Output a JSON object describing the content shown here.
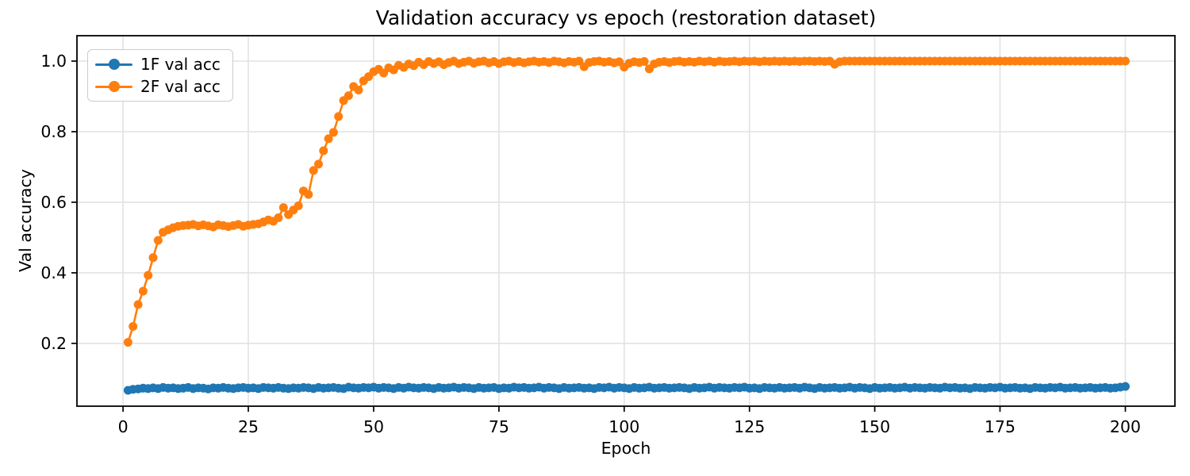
{
  "figure": {
    "title": "Validation accuracy vs epoch (restoration dataset)",
    "xlabel": "Epoch",
    "ylabel": "Val accuracy"
  },
  "legend": {
    "position": "upper left",
    "items": [
      {
        "label": "1F val acc",
        "color": "#1f77b4"
      },
      {
        "label": "2F val acc",
        "color": "#ff7f0e"
      }
    ]
  },
  "chart_data": {
    "type": "line",
    "title": "Validation accuracy vs epoch (restoration dataset)",
    "xlabel": "Epoch",
    "ylabel": "Val accuracy",
    "grid": true,
    "legend_position": "upper left",
    "marker": "circle",
    "xlim": [
      -9.2,
      209.9
    ],
    "ylim": [
      0.022,
      1.072
    ],
    "x_ticks": [
      0,
      25,
      50,
      75,
      100,
      125,
      150,
      175,
      200
    ],
    "x_tick_labels": [
      "0",
      "25",
      "50",
      "75",
      "100",
      "125",
      "150",
      "175",
      "200"
    ],
    "y_ticks": [
      0.2,
      0.4,
      0.6,
      0.8,
      1.0
    ],
    "y_tick_labels": [
      "0.2",
      "0.4",
      "0.6",
      "0.8",
      "1.0"
    ],
    "x": [
      1,
      2,
      3,
      4,
      5,
      6,
      7,
      8,
      9,
      10,
      11,
      12,
      13,
      14,
      15,
      16,
      17,
      18,
      19,
      20,
      21,
      22,
      23,
      24,
      25,
      26,
      27,
      28,
      29,
      30,
      31,
      32,
      33,
      34,
      35,
      36,
      37,
      38,
      39,
      40,
      41,
      42,
      43,
      44,
      45,
      46,
      47,
      48,
      49,
      50,
      51,
      52,
      53,
      54,
      55,
      56,
      57,
      58,
      59,
      60,
      61,
      62,
      63,
      64,
      65,
      66,
      67,
      68,
      69,
      70,
      71,
      72,
      73,
      74,
      75,
      76,
      77,
      78,
      79,
      80,
      81,
      82,
      83,
      84,
      85,
      86,
      87,
      88,
      89,
      90,
      91,
      92,
      93,
      94,
      95,
      96,
      97,
      98,
      99,
      100,
      101,
      102,
      103,
      104,
      105,
      106,
      107,
      108,
      109,
      110,
      111,
      112,
      113,
      114,
      115,
      116,
      117,
      118,
      119,
      120,
      121,
      122,
      123,
      124,
      125,
      126,
      127,
      128,
      129,
      130,
      131,
      132,
      133,
      134,
      135,
      136,
      137,
      138,
      139,
      140,
      141,
      142,
      143,
      144,
      145,
      146,
      147,
      148,
      149,
      150,
      151,
      152,
      153,
      154,
      155,
      156,
      157,
      158,
      159,
      160,
      161,
      162,
      163,
      164,
      165,
      166,
      167,
      168,
      169,
      170,
      171,
      172,
      173,
      174,
      175,
      176,
      177,
      178,
      179,
      180,
      181,
      182,
      183,
      184,
      185,
      186,
      187,
      188,
      189,
      190,
      191,
      192,
      193,
      194,
      195,
      196,
      197,
      198,
      199,
      200
    ],
    "series": [
      {
        "name": "1F val acc",
        "color": "#1f77b4",
        "values": [
          0.067,
          0.07,
          0.071,
          0.073,
          0.072,
          0.074,
          0.072,
          0.075,
          0.073,
          0.074,
          0.072,
          0.073,
          0.075,
          0.072,
          0.074,
          0.073,
          0.071,
          0.074,
          0.073,
          0.075,
          0.073,
          0.072,
          0.074,
          0.075,
          0.073,
          0.074,
          0.072,
          0.075,
          0.074,
          0.073,
          0.075,
          0.073,
          0.072,
          0.074,
          0.073,
          0.075,
          0.074,
          0.072,
          0.075,
          0.073,
          0.074,
          0.075,
          0.073,
          0.072,
          0.076,
          0.074,
          0.073,
          0.075,
          0.074,
          0.076,
          0.073,
          0.075,
          0.074,
          0.072,
          0.075,
          0.073,
          0.076,
          0.074,
          0.073,
          0.075,
          0.074,
          0.072,
          0.075,
          0.073,
          0.074,
          0.076,
          0.073,
          0.075,
          0.074,
          0.072,
          0.075,
          0.073,
          0.074,
          0.075,
          0.072,
          0.074,
          0.073,
          0.076,
          0.074,
          0.075,
          0.073,
          0.074,
          0.076,
          0.073,
          0.075,
          0.074,
          0.072,
          0.075,
          0.073,
          0.074,
          0.075,
          0.073,
          0.074,
          0.072,
          0.075,
          0.074,
          0.076,
          0.073,
          0.075,
          0.074,
          0.072,
          0.075,
          0.073,
          0.074,
          0.076,
          0.073,
          0.074,
          0.075,
          0.073,
          0.074,
          0.075,
          0.074,
          0.072,
          0.075,
          0.073,
          0.074,
          0.076,
          0.073,
          0.075,
          0.074,
          0.073,
          0.075,
          0.074,
          0.076,
          0.073,
          0.074,
          0.072,
          0.075,
          0.074,
          0.073,
          0.075,
          0.073,
          0.074,
          0.075,
          0.073,
          0.076,
          0.074,
          0.072,
          0.075,
          0.073,
          0.074,
          0.075,
          0.073,
          0.074,
          0.076,
          0.073,
          0.075,
          0.074,
          0.072,
          0.075,
          0.073,
          0.074,
          0.075,
          0.073,
          0.074,
          0.076,
          0.073,
          0.075,
          0.074,
          0.073,
          0.075,
          0.074,
          0.073,
          0.076,
          0.074,
          0.075,
          0.073,
          0.074,
          0.072,
          0.075,
          0.074,
          0.073,
          0.075,
          0.074,
          0.076,
          0.073,
          0.074,
          0.075,
          0.073,
          0.074,
          0.072,
          0.075,
          0.074,
          0.073,
          0.075,
          0.074,
          0.076,
          0.073,
          0.074,
          0.075,
          0.073,
          0.074,
          0.075,
          0.073,
          0.074,
          0.075,
          0.073,
          0.074,
          0.076,
          0.078
        ]
      },
      {
        "name": "2F val acc",
        "color": "#ff7f0e",
        "values": [
          0.203,
          0.248,
          0.31,
          0.348,
          0.393,
          0.443,
          0.492,
          0.515,
          0.522,
          0.528,
          0.532,
          0.534,
          0.535,
          0.537,
          0.533,
          0.536,
          0.533,
          0.53,
          0.536,
          0.534,
          0.531,
          0.534,
          0.537,
          0.532,
          0.535,
          0.537,
          0.539,
          0.544,
          0.55,
          0.546,
          0.556,
          0.585,
          0.565,
          0.578,
          0.59,
          0.632,
          0.622,
          0.69,
          0.708,
          0.746,
          0.78,
          0.798,
          0.843,
          0.888,
          0.902,
          0.928,
          0.918,
          0.944,
          0.956,
          0.97,
          0.977,
          0.966,
          0.981,
          0.975,
          0.988,
          0.982,
          0.992,
          0.987,
          0.997,
          0.99,
          0.999,
          0.993,
          0.998,
          0.99,
          0.996,
          1.0,
          0.993,
          0.997,
          1.0,
          0.994,
          0.998,
          1.0,
          0.995,
          0.999,
          0.993,
          0.998,
          1.0,
          0.996,
          0.999,
          0.995,
          0.998,
          1.0,
          0.997,
          0.999,
          0.996,
          1.0,
          0.998,
          0.995,
          0.999,
          0.997,
          1.0,
          0.984,
          0.996,
          0.999,
          1.0,
          0.997,
          0.999,
          0.995,
          0.998,
          0.983,
          0.994,
          0.998,
          0.996,
          0.999,
          0.978,
          0.992,
          0.997,
          0.999,
          0.996,
          0.999,
          1.0,
          0.997,
          0.999,
          0.997,
          1.0,
          0.998,
          1.0,
          0.997,
          1.0,
          0.998,
          0.999,
          1.0,
          0.998,
          1.0,
          0.999,
          1.0,
          0.998,
          1.0,
          0.999,
          1.0,
          0.999,
          1.0,
          0.999,
          1.0,
          0.999,
          1.0,
          1.0,
          0.999,
          1.0,
          0.999,
          1.0,
          0.991,
          0.998,
          1.0,
          1.0,
          1.0,
          1.0,
          1.0,
          1.0,
          1.0,
          1.0,
          1.0,
          1.0,
          1.0,
          1.0,
          1.0,
          1.0,
          1.0,
          1.0,
          1.0,
          1.0,
          1.0,
          1.0,
          1.0,
          1.0,
          1.0,
          1.0,
          1.0,
          1.0,
          1.0,
          1.0,
          1.0,
          1.0,
          1.0,
          1.0,
          1.0,
          1.0,
          1.0,
          1.0,
          1.0,
          1.0,
          1.0,
          1.0,
          1.0,
          1.0,
          1.0,
          1.0,
          1.0,
          1.0,
          1.0,
          1.0,
          1.0,
          1.0,
          1.0,
          1.0,
          1.0,
          1.0,
          1.0,
          1.0,
          1.0
        ]
      }
    ]
  }
}
